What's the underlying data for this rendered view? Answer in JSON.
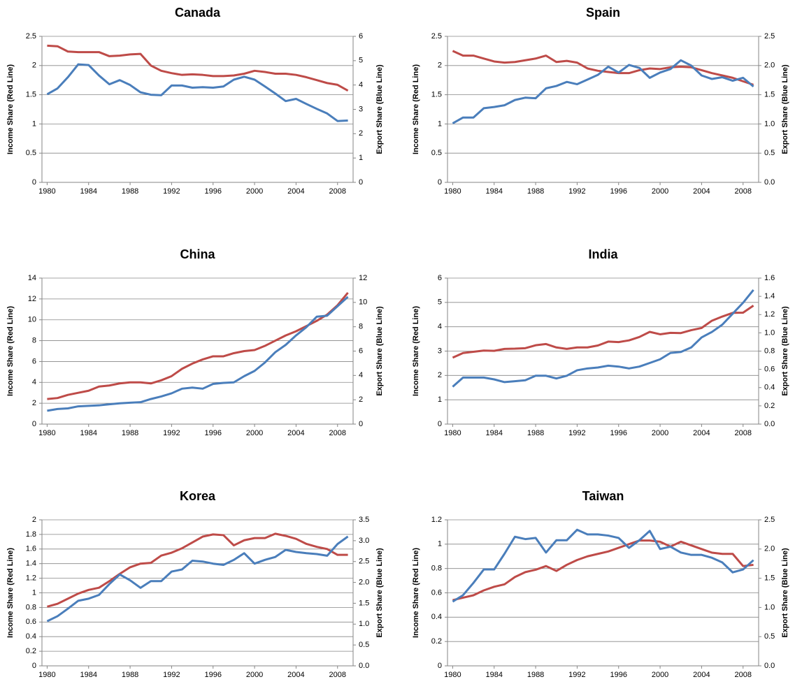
{
  "chart_data": [
    {
      "type": "line",
      "title": "Canada",
      "ylabel": "Income Share (Red Line)",
      "y2label": "Export Share (Blue Line)",
      "x": [
        1980,
        1981,
        1982,
        1983,
        1984,
        1985,
        1986,
        1987,
        1988,
        1989,
        1990,
        1991,
        1992,
        1993,
        1994,
        1995,
        1996,
        1997,
        1998,
        1999,
        2000,
        2001,
        2002,
        2003,
        2004,
        2005,
        2006,
        2007,
        2008,
        2009
      ],
      "xlim": [
        1979.5,
        2009.5
      ],
      "xticks": [
        1980,
        1984,
        1988,
        1992,
        1996,
        2000,
        2004,
        2008
      ],
      "ylim": [
        0,
        2.5
      ],
      "yticks": [
        0,
        0.5,
        1,
        1.5,
        2,
        2.5
      ],
      "y2lim": [
        0,
        6
      ],
      "y2ticks": [
        0,
        1,
        2,
        3,
        4,
        5,
        6
      ],
      "grid": true,
      "series": [
        {
          "color": "#be4b48",
          "values": [
            2.34,
            2.33,
            2.24,
            2.23,
            2.23,
            2.23,
            2.16,
            2.17,
            2.19,
            2.2,
            2.0,
            1.91,
            1.87,
            1.84,
            1.85,
            1.84,
            1.82,
            1.82,
            1.83,
            1.86,
            1.91,
            1.89,
            1.86,
            1.86,
            1.84,
            1.8,
            1.75,
            1.7,
            1.67,
            1.57
          ]
        },
        {
          "color": "#4a7ebb",
          "axis": "y2",
          "values": [
            3.62,
            3.86,
            4.32,
            4.85,
            4.82,
            4.39,
            4.03,
            4.2,
            4.0,
            3.7,
            3.6,
            3.58,
            3.98,
            3.98,
            3.89,
            3.91,
            3.89,
            3.94,
            4.22,
            4.34,
            4.22,
            3.94,
            3.65,
            3.34,
            3.43,
            3.22,
            3.02,
            2.83,
            2.52,
            2.54
          ]
        }
      ]
    },
    {
      "type": "line",
      "title": "Spain",
      "ylabel": "Income Share (Red Line)",
      "y2label": "Export Share (Blue Line)",
      "x": [
        1980,
        1981,
        1982,
        1983,
        1984,
        1985,
        1986,
        1987,
        1988,
        1989,
        1990,
        1991,
        1992,
        1993,
        1994,
        1995,
        1996,
        1997,
        1998,
        1999,
        2000,
        2001,
        2002,
        2003,
        2004,
        2005,
        2006,
        2007,
        2008,
        2009
      ],
      "xlim": [
        1979.5,
        2009.5
      ],
      "xticks": [
        1980,
        1984,
        1988,
        1992,
        1996,
        2000,
        2004,
        2008
      ],
      "ylim": [
        0,
        2.5
      ],
      "yticks": [
        0,
        0.5,
        1,
        1.5,
        2,
        2.5
      ],
      "y2lim": [
        0,
        2.5
      ],
      "y2ticks": [
        {
          "value": 0,
          "label": "0.0"
        },
        0.5,
        {
          "value": 1,
          "label": "1.0"
        },
        1.5,
        {
          "value": 2,
          "label": "2.0"
        },
        2.5
      ],
      "grid": true,
      "series": [
        {
          "color": "#be4b48",
          "values": [
            2.25,
            2.17,
            2.17,
            2.12,
            2.07,
            2.05,
            2.06,
            2.09,
            2.12,
            2.17,
            2.06,
            2.08,
            2.05,
            1.95,
            1.91,
            1.89,
            1.87,
            1.87,
            1.92,
            1.95,
            1.94,
            1.97,
            1.98,
            1.97,
            1.92,
            1.87,
            1.83,
            1.79,
            1.73,
            1.67
          ]
        },
        {
          "color": "#4a7ebb",
          "axis": "y2",
          "values": [
            1.01,
            1.11,
            1.11,
            1.27,
            1.29,
            1.32,
            1.41,
            1.45,
            1.44,
            1.61,
            1.65,
            1.72,
            1.68,
            1.76,
            1.84,
            1.98,
            1.88,
            2.01,
            1.96,
            1.79,
            1.88,
            1.94,
            2.09,
            2.0,
            1.83,
            1.77,
            1.8,
            1.74,
            1.79,
            1.64
          ]
        }
      ]
    },
    {
      "type": "line",
      "title": "China",
      "ylabel": "Income Share (Red Line)",
      "y2label": "Export Share (Blue Line)",
      "x": [
        1980,
        1981,
        1982,
        1983,
        1984,
        1985,
        1986,
        1987,
        1988,
        1989,
        1990,
        1991,
        1992,
        1993,
        1994,
        1995,
        1996,
        1997,
        1998,
        1999,
        2000,
        2001,
        2002,
        2003,
        2004,
        2005,
        2006,
        2007,
        2008,
        2009
      ],
      "xlim": [
        1979.5,
        2009.5
      ],
      "xticks": [
        1980,
        1984,
        1988,
        1992,
        1996,
        2000,
        2004,
        2008
      ],
      "ylim": [
        0,
        14
      ],
      "yticks": [
        0,
        2,
        4,
        6,
        8,
        10,
        12,
        14
      ],
      "y2lim": [
        0,
        12
      ],
      "y2ticks": [
        0,
        2,
        4,
        6,
        8,
        10,
        12
      ],
      "grid": true,
      "series": [
        {
          "color": "#be4b48",
          "values": [
            2.4,
            2.5,
            2.8,
            3.0,
            3.2,
            3.6,
            3.7,
            3.9,
            4.0,
            4.0,
            3.9,
            4.2,
            4.6,
            5.3,
            5.8,
            6.2,
            6.5,
            6.5,
            6.8,
            7.0,
            7.1,
            7.5,
            8.0,
            8.5,
            8.9,
            9.4,
            9.9,
            10.5,
            11.4,
            12.6
          ]
        },
        {
          "color": "#4a7ebb",
          "axis": "y2",
          "values": [
            1.1,
            1.24,
            1.29,
            1.46,
            1.5,
            1.54,
            1.63,
            1.71,
            1.76,
            1.8,
            2.06,
            2.27,
            2.53,
            2.91,
            3.0,
            2.91,
            3.3,
            3.39,
            3.43,
            3.94,
            4.37,
            5.06,
            5.91,
            6.51,
            7.29,
            7.97,
            8.83,
            8.91,
            9.69,
            10.46
          ]
        }
      ]
    },
    {
      "type": "line",
      "title": "India",
      "ylabel": "Income Share (Red Line)",
      "y2label": "Export Share (Blue Line)",
      "x": [
        1980,
        1981,
        1982,
        1983,
        1984,
        1985,
        1986,
        1987,
        1988,
        1989,
        1990,
        1991,
        1992,
        1993,
        1994,
        1995,
        1996,
        1997,
        1998,
        1999,
        2000,
        2001,
        2002,
        2003,
        2004,
        2005,
        2006,
        2007,
        2008,
        2009
      ],
      "xlim": [
        1979.5,
        2009.5
      ],
      "xticks": [
        1980,
        1984,
        1988,
        1992,
        1996,
        2000,
        2004,
        2008
      ],
      "ylim": [
        0,
        6
      ],
      "yticks": [
        0,
        1,
        2,
        3,
        4,
        5,
        6
      ],
      "y2lim": [
        0,
        1.6
      ],
      "y2ticks": [
        {
          "value": 0,
          "label": "0.0"
        },
        0.2,
        0.4,
        0.6,
        0.8,
        {
          "value": 1,
          "label": "1.0"
        },
        1.2,
        1.4,
        1.6
      ],
      "grid": true,
      "series": [
        {
          "color": "#be4b48",
          "values": [
            2.73,
            2.92,
            2.97,
            3.02,
            3.01,
            3.09,
            3.1,
            3.12,
            3.24,
            3.29,
            3.15,
            3.09,
            3.15,
            3.15,
            3.23,
            3.39,
            3.37,
            3.44,
            3.58,
            3.79,
            3.69,
            3.75,
            3.74,
            3.86,
            3.95,
            4.25,
            4.42,
            4.57,
            4.58,
            4.87
          ]
        },
        {
          "color": "#4a7ebb",
          "axis": "y2",
          "values": [
            0.41,
            0.51,
            0.51,
            0.51,
            0.49,
            0.46,
            0.47,
            0.48,
            0.53,
            0.53,
            0.5,
            0.53,
            0.59,
            0.61,
            0.62,
            0.64,
            0.63,
            0.61,
            0.63,
            0.67,
            0.71,
            0.78,
            0.79,
            0.84,
            0.95,
            1.01,
            1.09,
            1.21,
            1.33,
            1.47
          ]
        }
      ]
    },
    {
      "type": "line",
      "title": "Korea",
      "ylabel": "Income Share (Red Line)",
      "y2label": "Export Share (Blue Line)",
      "x": [
        1980,
        1981,
        1982,
        1983,
        1984,
        1985,
        1986,
        1987,
        1988,
        1989,
        1990,
        1991,
        1992,
        1993,
        1994,
        1995,
        1996,
        1997,
        1998,
        1999,
        2000,
        2001,
        2002,
        2003,
        2004,
        2005,
        2006,
        2007,
        2008,
        2009
      ],
      "xlim": [
        1979.5,
        2009.5
      ],
      "xticks": [
        1980,
        1984,
        1988,
        1992,
        1996,
        2000,
        2004,
        2008
      ],
      "ylim": [
        0,
        2
      ],
      "yticks": [
        0,
        0.2,
        0.4,
        0.6,
        0.8,
        1,
        1.2,
        1.4,
        1.6,
        1.8,
        2
      ],
      "y2lim": [
        0,
        3.5
      ],
      "y2ticks": [
        {
          "value": 0,
          "label": "0.0"
        },
        0.5,
        {
          "value": 1,
          "label": "1.0"
        },
        1.5,
        {
          "value": 2,
          "label": "2.0"
        },
        2.5,
        {
          "value": 3,
          "label": "3.0"
        },
        3.5
      ],
      "grid": true,
      "series": [
        {
          "color": "#be4b48",
          "values": [
            0.81,
            0.85,
            0.92,
            0.99,
            1.04,
            1.07,
            1.16,
            1.26,
            1.35,
            1.4,
            1.41,
            1.51,
            1.55,
            1.61,
            1.69,
            1.77,
            1.8,
            1.79,
            1.65,
            1.72,
            1.75,
            1.75,
            1.81,
            1.78,
            1.74,
            1.67,
            1.63,
            1.6,
            1.52,
            1.52
          ]
        },
        {
          "color": "#4a7ebb",
          "axis": "y2",
          "values": [
            1.07,
            1.19,
            1.37,
            1.56,
            1.61,
            1.7,
            1.96,
            2.19,
            2.05,
            1.87,
            2.03,
            2.03,
            2.26,
            2.31,
            2.52,
            2.5,
            2.45,
            2.42,
            2.54,
            2.7,
            2.45,
            2.54,
            2.61,
            2.78,
            2.73,
            2.7,
            2.68,
            2.64,
            2.92,
            3.1
          ]
        }
      ]
    },
    {
      "type": "line",
      "title": "Taiwan",
      "ylabel": "Income Share (Red Line)",
      "y2label": "Export Share (Blue Line)",
      "x": [
        1980,
        1981,
        1982,
        1983,
        1984,
        1985,
        1986,
        1987,
        1988,
        1989,
        1990,
        1991,
        1992,
        1993,
        1994,
        1995,
        1996,
        1997,
        1998,
        1999,
        2000,
        2001,
        2002,
        2003,
        2004,
        2005,
        2006,
        2007,
        2008,
        2009
      ],
      "xlim": [
        1979.5,
        2009.5
      ],
      "xticks": [
        1980,
        1984,
        1988,
        1992,
        1996,
        2000,
        2004,
        2008
      ],
      "ylim": [
        0,
        1.2
      ],
      "yticks": [
        0,
        0.2,
        0.4,
        0.6,
        0.8,
        1,
        1.2
      ],
      "y2lim": [
        0,
        2.5
      ],
      "y2ticks": [
        {
          "value": 0,
          "label": "0.0"
        },
        0.5,
        {
          "value": 1,
          "label": "1.0"
        },
        1.5,
        {
          "value": 2,
          "label": "2.0"
        },
        2.5
      ],
      "grid": true,
      "series": [
        {
          "color": "#be4b48",
          "values": [
            0.54,
            0.56,
            0.58,
            0.62,
            0.65,
            0.67,
            0.73,
            0.77,
            0.79,
            0.82,
            0.78,
            0.83,
            0.87,
            0.9,
            0.92,
            0.94,
            0.97,
            1.0,
            1.03,
            1.03,
            1.02,
            0.98,
            1.02,
            0.99,
            0.96,
            0.93,
            0.92,
            0.92,
            0.82,
            0.83
          ]
        },
        {
          "color": "#4a7ebb",
          "axis": "y2",
          "values": [
            1.1,
            1.21,
            1.42,
            1.65,
            1.65,
            1.92,
            2.21,
            2.17,
            2.19,
            1.94,
            2.15,
            2.15,
            2.33,
            2.25,
            2.25,
            2.23,
            2.19,
            2.02,
            2.15,
            2.31,
            2.0,
            2.04,
            1.94,
            1.9,
            1.9,
            1.85,
            1.77,
            1.6,
            1.65,
            1.81
          ]
        }
      ]
    }
  ]
}
